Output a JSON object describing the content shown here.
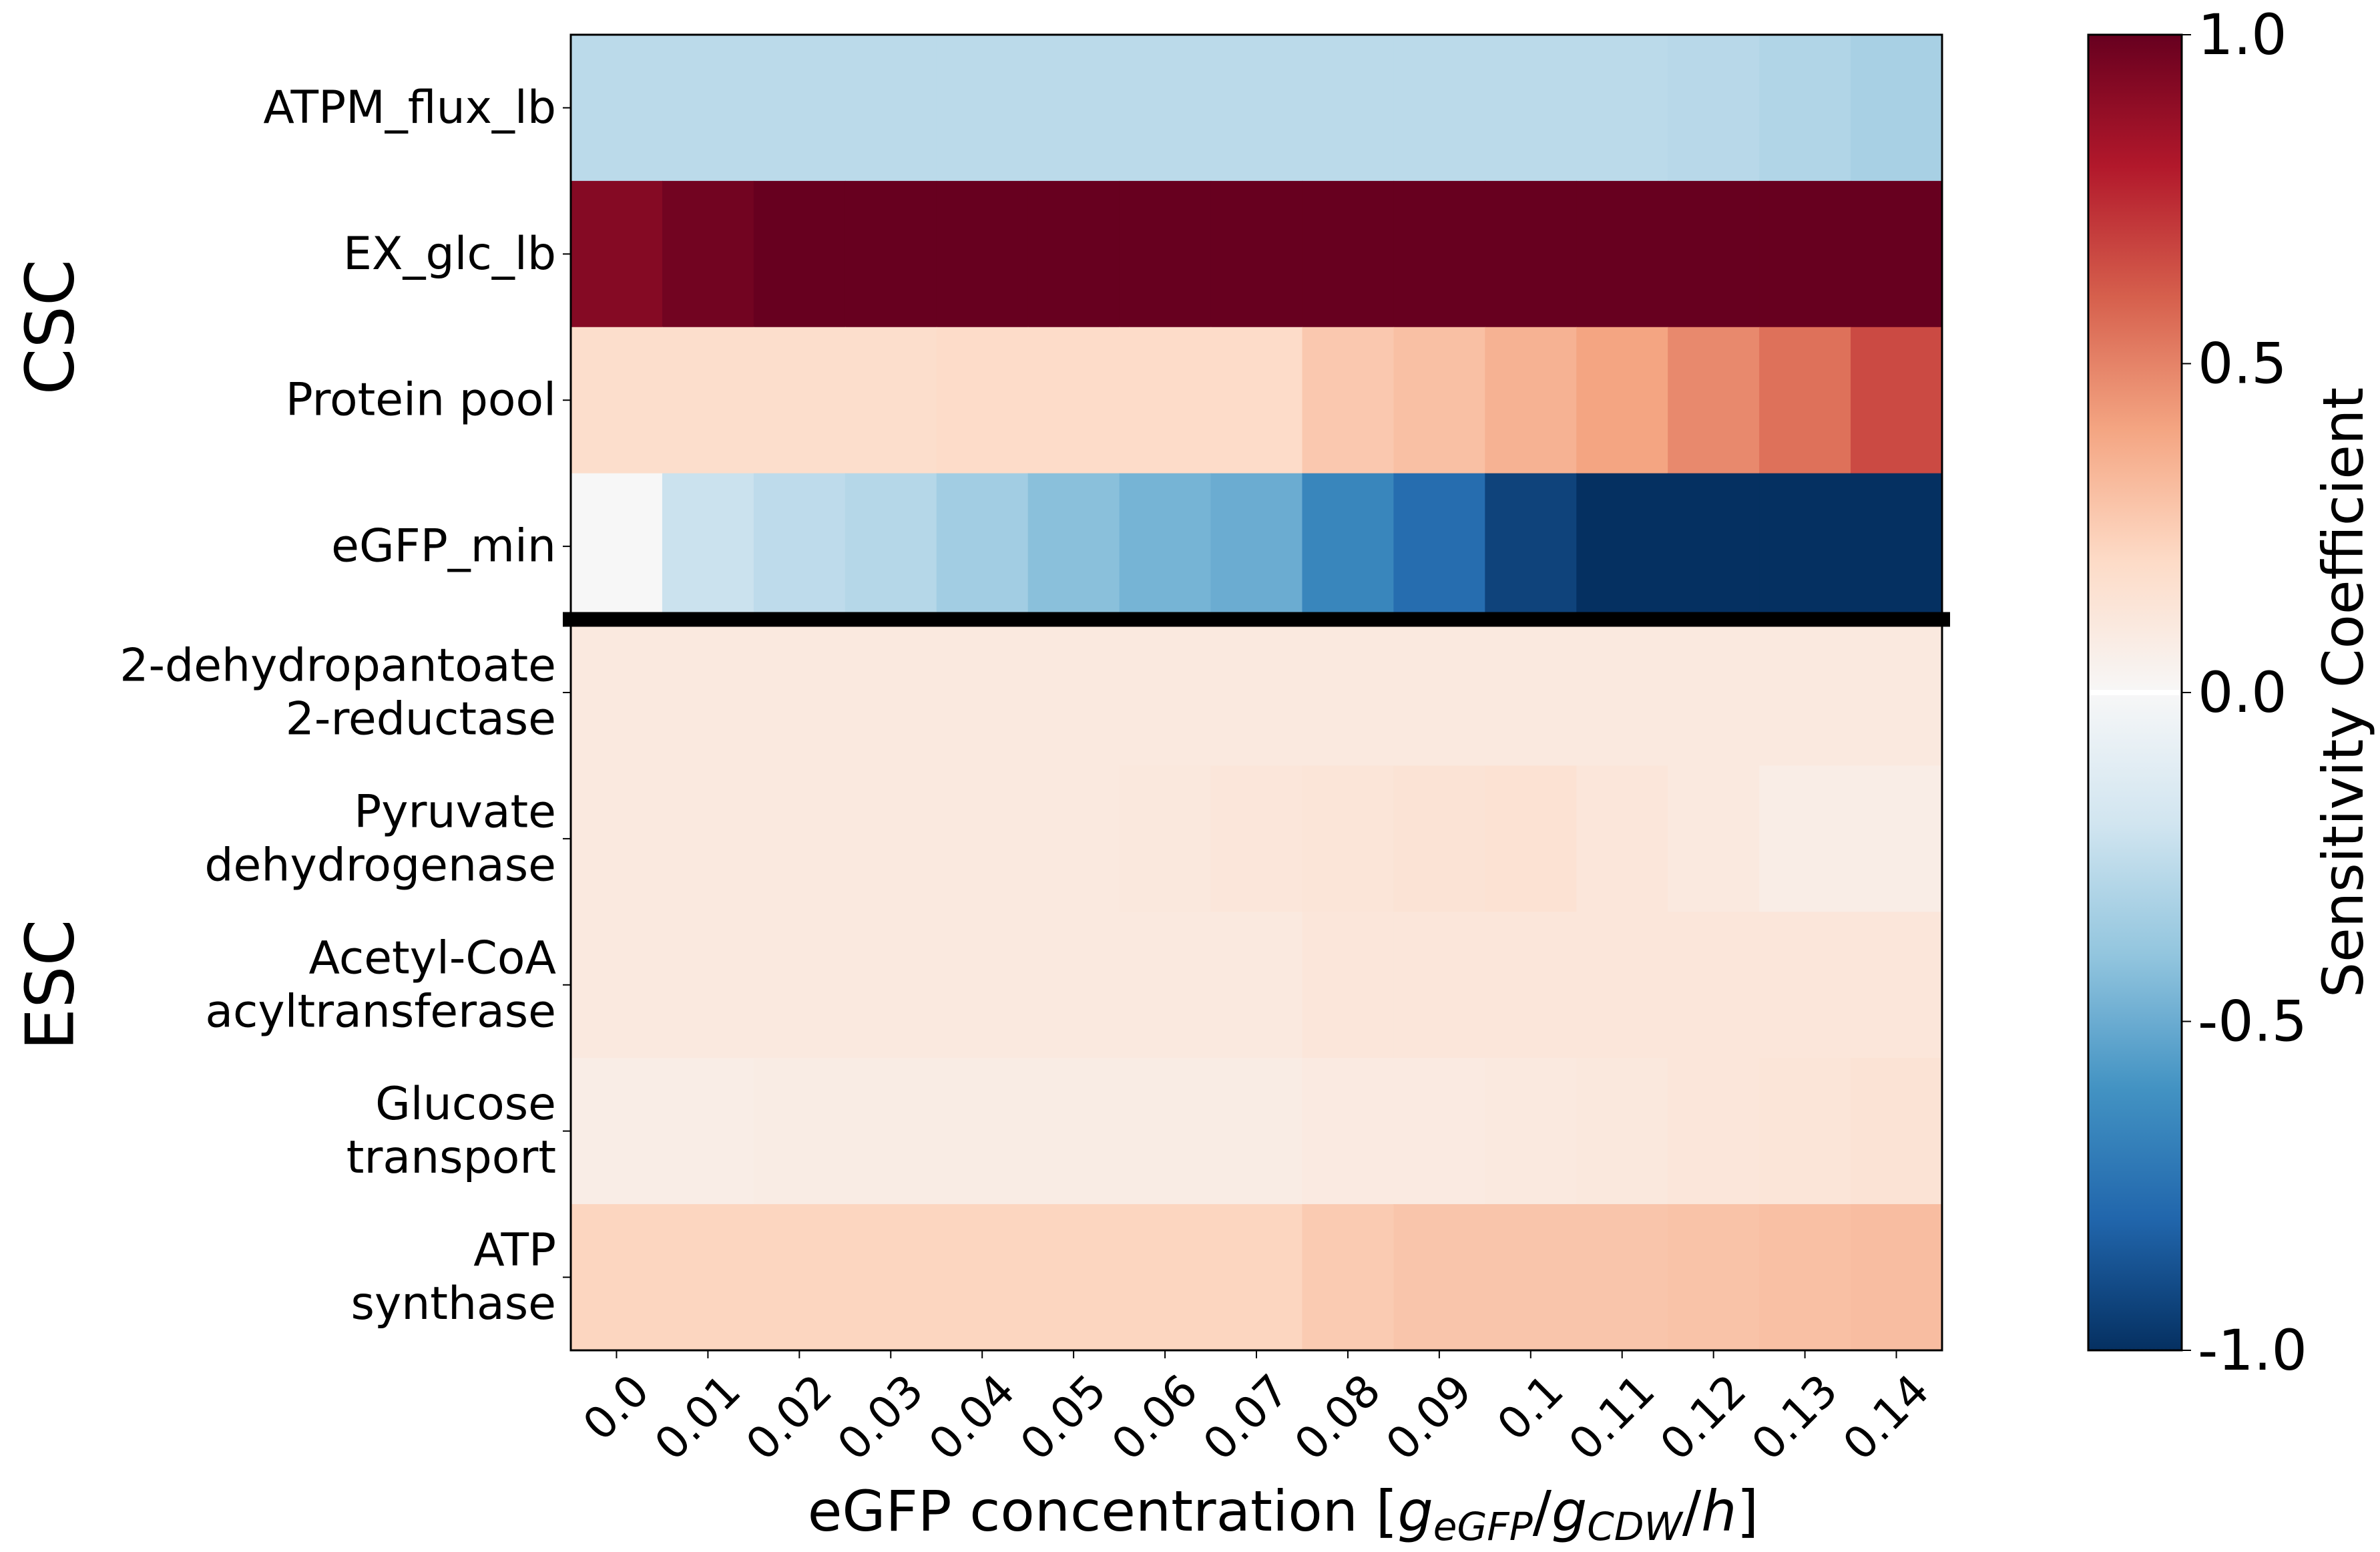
{
  "chart_data": {
    "type": "heatmap",
    "title": "",
    "xlabel": "eGFP concentration [",
    "xlabel_math": {
      "g1": "g",
      "sub1": "eGFP",
      "sep1": "/",
      "g2": "g",
      "sub2": "CDW",
      "sep2": "/",
      "h": "h",
      "close": "]"
    },
    "x": [
      "0.0",
      "0.01",
      "0.02",
      "0.03",
      "0.04",
      "0.05",
      "0.06",
      "0.07",
      "0.08",
      "0.09",
      "0.1",
      "0.11",
      "0.12",
      "0.13",
      "0.14"
    ],
    "groups": [
      {
        "label": "CSC",
        "rows": [
          0,
          1,
          2,
          3
        ]
      },
      {
        "label": "ESC",
        "rows": [
          4,
          5,
          6,
          7,
          8
        ]
      }
    ],
    "rows": [
      {
        "label": [
          "ATPM_flux_lb"
        ],
        "values": [
          -0.27,
          -0.27,
          -0.27,
          -0.27,
          -0.27,
          -0.27,
          -0.27,
          -0.27,
          -0.27,
          -0.27,
          -0.27,
          -0.27,
          -0.28,
          -0.3,
          -0.33
        ]
      },
      {
        "label": [
          "EX_glc_lb"
        ],
        "values": [
          0.92,
          0.97,
          1.0,
          1.0,
          1.0,
          1.0,
          1.0,
          1.0,
          1.0,
          1.0,
          1.0,
          1.0,
          1.0,
          1.0,
          1.0
        ]
      },
      {
        "label": [
          "Protein pool"
        ],
        "values": [
          0.18,
          0.18,
          0.18,
          0.18,
          0.19,
          0.19,
          0.19,
          0.19,
          0.27,
          0.3,
          0.35,
          0.4,
          0.48,
          0.55,
          0.66
        ]
      },
      {
        "label": [
          "eGFP_min"
        ],
        "values": [
          0.0,
          -0.22,
          -0.26,
          -0.29,
          -0.35,
          -0.42,
          -0.47,
          -0.5,
          -0.66,
          -0.77,
          -0.93,
          -1.0,
          -1.0,
          -1.0,
          -1.0
        ]
      },
      {
        "label": [
          "2-dehydropantoate",
          "2-reductase"
        ],
        "values": [
          0.1,
          0.1,
          0.1,
          0.1,
          0.1,
          0.1,
          0.1,
          0.1,
          0.1,
          0.1,
          0.1,
          0.1,
          0.1,
          0.1,
          0.1
        ]
      },
      {
        "label": [
          "Pyruvate",
          "dehydrogenase"
        ],
        "values": [
          0.1,
          0.1,
          0.1,
          0.1,
          0.1,
          0.1,
          0.11,
          0.12,
          0.13,
          0.14,
          0.15,
          0.12,
          0.1,
          0.07,
          0.07
        ]
      },
      {
        "label": [
          "Acetyl-CoA",
          "acyltransferase"
        ],
        "values": [
          0.1,
          0.1,
          0.1,
          0.1,
          0.1,
          0.1,
          0.1,
          0.1,
          0.12,
          0.12,
          0.12,
          0.12,
          0.12,
          0.12,
          0.12
        ]
      },
      {
        "label": [
          "Glucose",
          "transport"
        ],
        "values": [
          0.07,
          0.07,
          0.08,
          0.08,
          0.08,
          0.08,
          0.08,
          0.08,
          0.09,
          0.09,
          0.1,
          0.11,
          0.12,
          0.13,
          0.14
        ]
      },
      {
        "label": [
          "ATP",
          "synthase"
        ],
        "values": [
          0.22,
          0.22,
          0.22,
          0.22,
          0.22,
          0.22,
          0.22,
          0.22,
          0.26,
          0.28,
          0.28,
          0.28,
          0.29,
          0.3,
          0.31
        ]
      }
    ],
    "colorbar": {
      "label": "Sensitivity Coefficient",
      "colormap": "RdBu_r",
      "vmin": -1.0,
      "vmax": 1.0,
      "ticks": [
        1.0,
        0.5,
        0.0,
        -0.5,
        -1.0
      ],
      "tick_labels": [
        "1.0",
        "0.5",
        "0.0",
        "-0.5",
        "-1.0"
      ]
    },
    "separator": {
      "between_rows": [
        3,
        4
      ],
      "color": "#000000"
    }
  }
}
